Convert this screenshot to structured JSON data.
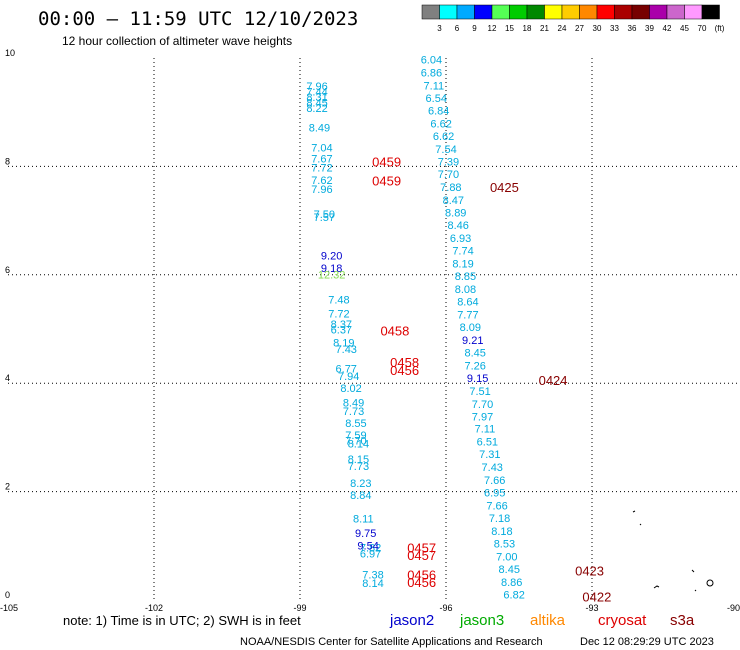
{
  "header": {
    "title": "00:00 – 11:59 UTC 12/10/2023",
    "subtitle": "12 hour collection of altimeter wave heights"
  },
  "legend": {
    "colors": [
      "#808080",
      "#00ffff",
      "#00aaff",
      "#0000ff",
      "#55ff55",
      "#00cc00",
      "#008800",
      "#ffff00",
      "#ffcc00",
      "#ff8800",
      "#ff0000",
      "#aa0000",
      "#770000",
      "#aa00aa",
      "#cc66cc",
      "#ff99ff",
      "#000000"
    ],
    "labels": [
      "3",
      "6",
      "9",
      "12",
      "15",
      "18",
      "21",
      "24",
      "27",
      "30",
      "33",
      "36",
      "39",
      "42",
      "45",
      "70",
      "(ft)"
    ]
  },
  "footer": {
    "note": "note: 1) Time is in UTC; 2) SWH is in feet",
    "satellites": [
      {
        "name": "jason2",
        "color": "#0000cc"
      },
      {
        "name": "jason3",
        "color": "#00aa00"
      },
      {
        "name": "altika",
        "color": "#ff8800"
      },
      {
        "name": "cryosat",
        "color": "#dd0000"
      },
      {
        "name": "s3a",
        "color": "#880000"
      }
    ],
    "credit": "NOAA/NESDIS Center for Satellite Applications and Research",
    "timestamp": "Dec 12 08:29:29 UTC 2023"
  },
  "chart_data": {
    "type": "scatter",
    "xlim": [
      -105,
      -90
    ],
    "ylim": [
      0,
      10
    ],
    "grid": true,
    "x_ticks": [
      "-105",
      "-102",
      "-99",
      "-96",
      "-93",
      "-90"
    ],
    "y_ticks": [
      "0",
      "2",
      "4",
      "6",
      "8",
      "10"
    ],
    "series": [
      {
        "color": "#00aadd",
        "points": [
          {
            "x": -96.3,
            "y": 9.97,
            "label": "6.04"
          },
          {
            "x": -96.3,
            "y": 9.73,
            "label": "6.86"
          },
          {
            "x": -96.25,
            "y": 9.49,
            "label": "7.11"
          },
          {
            "x": -96.2,
            "y": 9.26,
            "label": "6.54"
          },
          {
            "x": -96.15,
            "y": 9.03,
            "label": "6.84"
          },
          {
            "x": -96.1,
            "y": 8.79,
            "label": "6.62"
          },
          {
            "x": -96.05,
            "y": 8.56,
            "label": "6.62"
          },
          {
            "x": -96.0,
            "y": 8.32,
            "label": "7.54"
          },
          {
            "x": -95.95,
            "y": 8.09,
            "label": "7.39"
          },
          {
            "x": -95.95,
            "y": 7.86,
            "label": "7.70"
          },
          {
            "x": -95.9,
            "y": 7.62,
            "label": "7.88"
          },
          {
            "x": -95.85,
            "y": 7.38,
            "label": "8.47"
          },
          {
            "x": -95.8,
            "y": 7.15,
            "label": "8.89"
          },
          {
            "x": -95.75,
            "y": 6.92,
            "label": "8.46"
          },
          {
            "x": -95.7,
            "y": 6.68,
            "label": "6.93"
          },
          {
            "x": -95.65,
            "y": 6.45,
            "label": "7.74"
          },
          {
            "x": -95.65,
            "y": 6.21,
            "label": "8.19"
          },
          {
            "x": -95.6,
            "y": 5.98,
            "label": "8.85"
          },
          {
            "x": -95.6,
            "y": 5.74,
            "label": "8.08"
          },
          {
            "x": -95.55,
            "y": 5.51,
            "label": "8.64"
          },
          {
            "x": -95.55,
            "y": 5.27,
            "label": "7.77"
          },
          {
            "x": -95.5,
            "y": 5.04,
            "label": "8.09"
          },
          {
            "x": -95.4,
            "y": 4.57,
            "label": "8.45"
          },
          {
            "x": -95.4,
            "y": 4.33,
            "label": "7.26"
          },
          {
            "x": -95.3,
            "y": 3.86,
            "label": "7.51"
          },
          {
            "x": -95.25,
            "y": 3.62,
            "label": "7.70"
          },
          {
            "x": -95.25,
            "y": 3.39,
            "label": "7.97"
          },
          {
            "x": -95.2,
            "y": 3.16,
            "label": "7.11"
          },
          {
            "x": -95.15,
            "y": 2.92,
            "label": "6.51"
          },
          {
            "x": -95.1,
            "y": 2.69,
            "label": "7.31"
          },
          {
            "x": -95.05,
            "y": 2.45,
            "label": "7.43"
          },
          {
            "x": -95.0,
            "y": 2.21,
            "label": "7.66"
          },
          {
            "x": -95.0,
            "y": 1.98,
            "label": "6.95"
          },
          {
            "x": -94.95,
            "y": 1.74,
            "label": "7.66"
          },
          {
            "x": -94.9,
            "y": 1.51,
            "label": "7.18"
          },
          {
            "x": -94.85,
            "y": 1.27,
            "label": "8.18"
          },
          {
            "x": -94.8,
            "y": 1.04,
            "label": "8.53"
          },
          {
            "x": -94.75,
            "y": 0.8,
            "label": "7.00"
          },
          {
            "x": -94.7,
            "y": 0.57,
            "label": "8.45"
          },
          {
            "x": -94.65,
            "y": 0.33,
            "label": "8.86"
          },
          {
            "x": -94.6,
            "y": 0.1,
            "label": "6.82"
          },
          {
            "x": -98.65,
            "y": 9.48,
            "label": "7.96"
          },
          {
            "x": -98.65,
            "y": 9.38,
            "label": "7.44"
          },
          {
            "x": -98.65,
            "y": 9.28,
            "label": "8.31"
          },
          {
            "x": -98.65,
            "y": 9.18,
            "label": "8.45"
          },
          {
            "x": -98.65,
            "y": 9.08,
            "label": "8.22"
          },
          {
            "x": -98.6,
            "y": 8.72,
            "label": "8.49"
          },
          {
            "x": -98.55,
            "y": 8.35,
            "label": "7.04"
          },
          {
            "x": -98.55,
            "y": 8.15,
            "label": "7.67"
          },
          {
            "x": -98.55,
            "y": 7.98,
            "label": "7.72"
          },
          {
            "x": -98.55,
            "y": 7.75,
            "label": "7.62"
          },
          {
            "x": -98.55,
            "y": 7.58,
            "label": "7.96"
          },
          {
            "x": -98.5,
            "y": 7.12,
            "label": "7.50"
          },
          {
            "x": -98.5,
            "y": 7.07,
            "label": "7.57"
          },
          {
            "x": -98.2,
            "y": 5.54,
            "label": "7.48"
          },
          {
            "x": -98.2,
            "y": 5.29,
            "label": "7.72"
          },
          {
            "x": -98.15,
            "y": 5.09,
            "label": "8.37"
          },
          {
            "x": -98.15,
            "y": 4.99,
            "label": "6.37"
          },
          {
            "x": -98.1,
            "y": 4.75,
            "label": "8.19"
          },
          {
            "x": -98.05,
            "y": 4.63,
            "label": "7.43"
          },
          {
            "x": -98.05,
            "y": 4.27,
            "label": "6.77"
          },
          {
            "x": -98.0,
            "y": 4.13,
            "label": "7.94"
          },
          {
            "x": -97.95,
            "y": 3.91,
            "label": "8.02"
          },
          {
            "x": -97.9,
            "y": 3.64,
            "label": "8.49"
          },
          {
            "x": -97.9,
            "y": 3.49,
            "label": "7.73"
          },
          {
            "x": -97.85,
            "y": 3.27,
            "label": "8.55"
          },
          {
            "x": -97.85,
            "y": 3.04,
            "label": "7.59"
          },
          {
            "x": -97.85,
            "y": 2.94,
            "label": "7.70"
          },
          {
            "x": -97.8,
            "y": 2.89,
            "label": "8.14"
          },
          {
            "x": -97.8,
            "y": 2.6,
            "label": "8.15"
          },
          {
            "x": -97.8,
            "y": 2.47,
            "label": "7.73"
          },
          {
            "x": -97.75,
            "y": 2.16,
            "label": "8.23"
          },
          {
            "x": -97.75,
            "y": 1.94,
            "label": "8.84"
          },
          {
            "x": -97.7,
            "y": 1.5,
            "label": "8.11"
          },
          {
            "x": -97.55,
            "y": 0.97,
            "label": "7.82"
          },
          {
            "x": -97.55,
            "y": 0.86,
            "label": "6.97"
          },
          {
            "x": -97.5,
            "y": 0.47,
            "label": "7.38"
          },
          {
            "x": -97.5,
            "y": 0.31,
            "label": "8.14"
          }
        ]
      },
      {
        "color": "#0000cc",
        "points": [
          {
            "x": -98.35,
            "y": 6.36,
            "label": "9.20"
          },
          {
            "x": -98.35,
            "y": 6.13,
            "label": "9.18"
          },
          {
            "x": -95.45,
            "y": 4.8,
            "label": "9.21"
          },
          {
            "x": -95.35,
            "y": 4.1,
            "label": "9.15"
          },
          {
            "x": -97.65,
            "y": 1.24,
            "label": "9.75"
          },
          {
            "x": -97.6,
            "y": 1.01,
            "label": "9.54"
          }
        ]
      },
      {
        "color": "#88dd55",
        "points": [
          {
            "x": -98.35,
            "y": 6.01,
            "label": "12.32"
          }
        ]
      }
    ],
    "time_labels": [
      {
        "x": -97.22,
        "y": 8.09,
        "label": "0459",
        "color": "#dd0000"
      },
      {
        "x": -97.22,
        "y": 7.74,
        "label": "0459",
        "color": "#dd0000"
      },
      {
        "x": -94.8,
        "y": 7.62,
        "label": "0425",
        "color": "#880000"
      },
      {
        "x": -97.05,
        "y": 4.97,
        "label": "0458",
        "color": "#dd0000"
      },
      {
        "x": -96.85,
        "y": 4.39,
        "label": "0458",
        "color": "#dd0000"
      },
      {
        "x": -96.85,
        "y": 4.24,
        "label": "0456",
        "color": "#dd0000"
      },
      {
        "x": -93.8,
        "y": 4.06,
        "label": "0424",
        "color": "#880000"
      },
      {
        "x": -96.5,
        "y": 0.97,
        "label": "0457",
        "color": "#dd0000"
      },
      {
        "x": -96.5,
        "y": 0.83,
        "label": "0457",
        "color": "#dd0000"
      },
      {
        "x": -93.05,
        "y": 0.54,
        "label": "0423",
        "color": "#880000"
      },
      {
        "x": -96.5,
        "y": 0.47,
        "label": "0456",
        "color": "#dd0000"
      },
      {
        "x": -96.5,
        "y": 0.33,
        "label": "0456",
        "color": "#dd0000"
      },
      {
        "x": -92.9,
        "y": 0.06,
        "label": "0422",
        "color": "#880000"
      }
    ]
  }
}
